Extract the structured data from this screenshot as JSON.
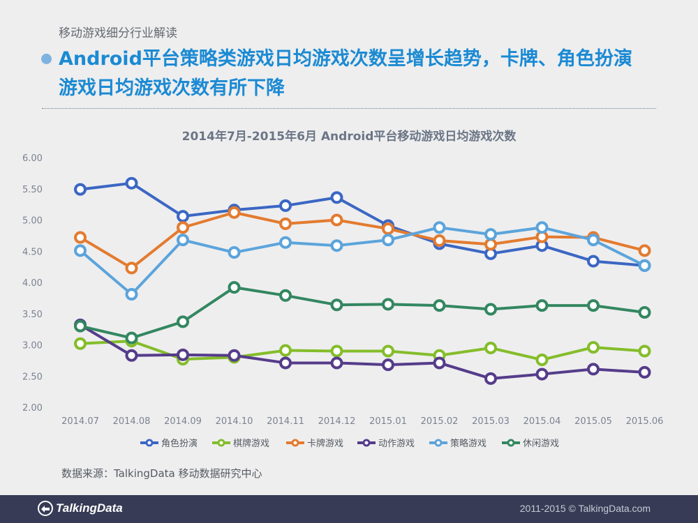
{
  "page": {
    "section_label": "移动游戏细分行业解读",
    "headline_line1": "Android平台策略类游戏日均游戏次数呈增长趋势，卡牌、角色扮演",
    "headline_line2": "游戏日均游戏次数有所下降",
    "source": "数据来源：TalkingData 移动数据研究中心"
  },
  "footer": {
    "brand": "TalkingData",
    "copyright": "2011-2015 © TalkingData.com"
  },
  "colors": {
    "accent": "#1b8ad3",
    "footer_bg": "#373b55"
  },
  "chart_data": {
    "type": "line",
    "title": "2014年7月-2015年6月 Android平台移动游戏日均游戏次数",
    "xlabel": "",
    "ylabel": "",
    "ylim": [
      2.0,
      6.0
    ],
    "yticks": [
      "6.00",
      "5.50",
      "5.00",
      "4.50",
      "4.00",
      "3.50",
      "3.00",
      "2.50",
      "2.00"
    ],
    "ytick_values": [
      6.0,
      5.5,
      5.0,
      4.5,
      4.0,
      3.5,
      3.0,
      2.5,
      2.0
    ],
    "grid": false,
    "legend_position": "bottom",
    "categories": [
      "2014.07",
      "2014.08",
      "2014.09",
      "2014.10",
      "2014.11",
      "2014.12",
      "2015.01",
      "2015.02",
      "2015.03",
      "2015.04",
      "2015.05",
      "2015.06"
    ],
    "series": [
      {
        "name": "角色扮演",
        "color": "#3b67c3",
        "values": [
          5.49,
          5.59,
          5.06,
          5.16,
          5.23,
          5.36,
          4.91,
          4.62,
          4.46,
          4.59,
          4.34,
          4.27
        ]
      },
      {
        "name": "棋牌游戏",
        "color": "#84bd2a",
        "values": [
          3.02,
          3.06,
          2.77,
          2.8,
          2.91,
          2.9,
          2.9,
          2.83,
          2.95,
          2.76,
          2.96,
          2.9
        ]
      },
      {
        "name": "卡牌游戏",
        "color": "#e37b2f",
        "values": [
          4.72,
          4.23,
          4.88,
          5.12,
          4.94,
          5.0,
          4.86,
          4.67,
          4.61,
          4.73,
          4.72,
          4.51
        ]
      },
      {
        "name": "动作游戏",
        "color": "#553c8a",
        "values": [
          3.32,
          2.83,
          2.84,
          2.83,
          2.71,
          2.71,
          2.68,
          2.71,
          2.46,
          2.53,
          2.61,
          2.56
        ]
      },
      {
        "name": "策略游戏",
        "color": "#5ca4db",
        "values": [
          4.51,
          3.81,
          4.68,
          4.48,
          4.64,
          4.59,
          4.68,
          4.88,
          4.77,
          4.88,
          4.68,
          4.27
        ]
      },
      {
        "name": "休闲游戏",
        "color": "#338760",
        "values": [
          3.3,
          3.11,
          3.37,
          3.92,
          3.79,
          3.64,
          3.65,
          3.63,
          3.57,
          3.63,
          3.63,
          3.52
        ]
      }
    ]
  }
}
